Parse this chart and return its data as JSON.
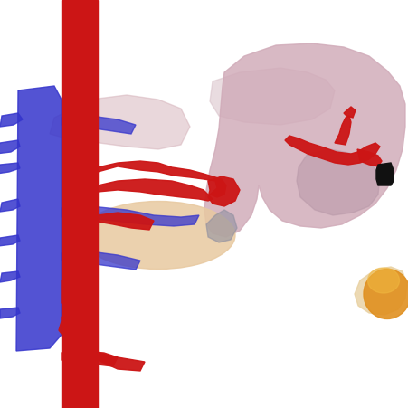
{
  "background_color": "#ffffff",
  "figsize": [
    4.51,
    4.51
  ],
  "dpi": 100,
  "left": {
    "aorta_color": "#cc1515",
    "blue_color": "#3535cc",
    "red_color": "#cc1515",
    "beige_color": "#e8c9a0",
    "gray_color": "#c0b0b0",
    "pink_color": "#d8b0b8"
  },
  "right": {
    "liver_outer_color": "#d8c0c8",
    "liver_inner_color": "#d0aab8",
    "shadow_color": "#b898a8",
    "red_color": "#cc1515",
    "black_color": "#111111",
    "orange_color": "#e09020",
    "beige_color": "#e8d0a0"
  }
}
